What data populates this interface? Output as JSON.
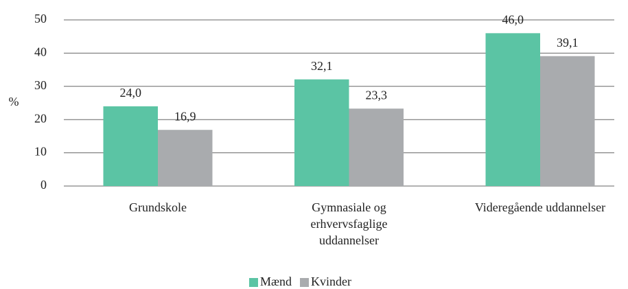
{
  "chart_data": {
    "type": "bar",
    "categories": [
      "Grundskole",
      "Gymnasiale og erhvervsfaglige uddannelser",
      "Videregående uddannelser"
    ],
    "series": [
      {
        "name": "Mænd",
        "color": "#5bc4a4",
        "values": [
          24.0,
          32.1,
          46.0
        ],
        "value_labels": [
          "24,0",
          "32,1",
          "46,0"
        ]
      },
      {
        "name": "Kvinder",
        "color": "#a9abae",
        "values": [
          16.9,
          23.3,
          39.1
        ],
        "value_labels": [
          "16,9",
          "23,3",
          "39,1"
        ]
      }
    ],
    "y_label": "%",
    "ylim": [
      0,
      50
    ],
    "yticks": [
      0,
      10,
      20,
      30,
      40,
      50
    ],
    "grid": true,
    "legend": "bottom"
  }
}
